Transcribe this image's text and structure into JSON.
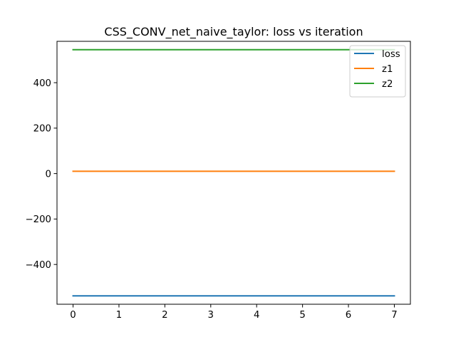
{
  "chart_data": {
    "type": "line",
    "title": "CSS_CONV_net_naive_taylor: loss vs iteration",
    "xlabel": "",
    "ylabel": "",
    "x": [
      0,
      1,
      2,
      3,
      4,
      5,
      6,
      7
    ],
    "series": [
      {
        "name": "loss",
        "color": "#1f77b4",
        "values": [
          -538,
          -538,
          -538,
          -538,
          -538,
          -538,
          -538,
          -538
        ]
      },
      {
        "name": "z1",
        "color": "#ff7f0e",
        "values": [
          10,
          10,
          10,
          10,
          10,
          10,
          10,
          10
        ]
      },
      {
        "name": "z2",
        "color": "#2ca02c",
        "values": [
          545,
          545,
          545,
          545,
          545,
          545,
          545,
          545
        ]
      }
    ],
    "xlim": [
      -0.35,
      7.35
    ],
    "ylim": [
      -575,
      582
    ],
    "xticks": [
      0,
      1,
      2,
      3,
      4,
      5,
      6,
      7
    ],
    "yticks": [
      -400,
      -200,
      0,
      200,
      400
    ],
    "ytick_labels": [
      "−400",
      "−200",
      "0",
      "200",
      "400"
    ],
    "grid": false,
    "legend_position": "upper right"
  }
}
